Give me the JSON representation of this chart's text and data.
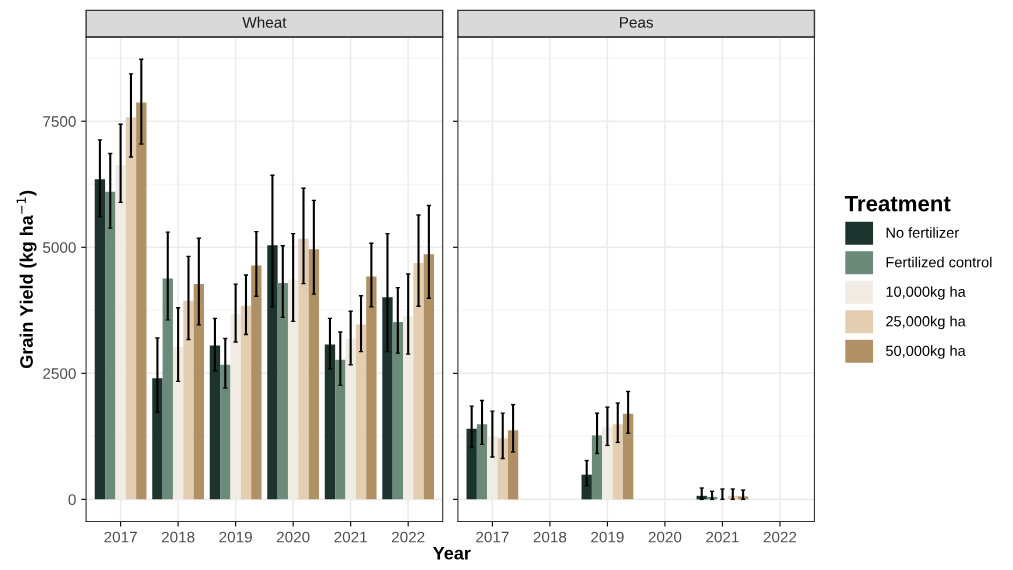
{
  "chart_data": [
    {
      "type": "bar",
      "title": "Wheat",
      "xlabel": "Year",
      "ylabel": "Grain Yield (kg ha$^{−1}$)",
      "categories": [
        "2017",
        "2018",
        "2019",
        "2020",
        "2021",
        "2022"
      ],
      "ylim": [
        -440,
        9170
      ],
      "yticks": [
        0,
        2500,
        5000,
        7500
      ],
      "grid": true,
      "tick_labels": true,
      "legend": "right",
      "legend_title": "Treatment",
      "series": [
        {
          "name": "No fertilizer",
          "color": "#1c332e",
          "values": [
            6350,
            2400,
            3050,
            5040,
            3070,
            4010
          ],
          "errors": [
            [
              5610,
              7130
            ],
            [
              1730,
              3200
            ],
            [
              2550,
              3590
            ],
            [
              3820,
              6430
            ],
            [
              2590,
              3590
            ],
            [
              2930,
              5270
            ]
          ]
        },
        {
          "name": "Fertilized control",
          "color": "#6b8a7a",
          "values": [
            6100,
            4380,
            2670,
            4290,
            2770,
            3520
          ],
          "errors": [
            [
              5380,
              6860
            ],
            [
              3560,
              5300
            ],
            [
              2210,
              3190
            ],
            [
              3610,
              5030
            ],
            [
              2260,
              3320
            ],
            [
              2900,
              4200
            ]
          ]
        },
        {
          "name": "10,000kg ha",
          "color": "#f0ece4",
          "values": [
            6630,
            3020,
            3670,
            4360,
            3180,
            3630
          ],
          "errors": [
            [
              5890,
              7440
            ],
            [
              2340,
              3800
            ],
            [
              3120,
              4270
            ],
            [
              3530,
              5270
            ],
            [
              2670,
              3730
            ],
            [
              2880,
              4470
            ]
          ]
        },
        {
          "name": "25,000kg ha",
          "color": "#e3ceb2",
          "values": [
            7580,
            3940,
            3840,
            5170,
            3470,
            4690
          ],
          "errors": [
            [
              6790,
              8440
            ],
            [
              3170,
              4820
            ],
            [
              3270,
              4450
            ],
            [
              4280,
              6170
            ],
            [
              2930,
              4040
            ],
            [
              3830,
              5640
            ]
          ]
        },
        {
          "name": "50,000kg ha",
          "color": "#b09166",
          "values": [
            7870,
            4270,
            4640,
            4960,
            4420,
            4860
          ],
          "errors": [
            [
              7050,
              8730
            ],
            [
              3460,
              5180
            ],
            [
              4030,
              5310
            ],
            [
              4070,
              5930
            ],
            [
              3820,
              5080
            ],
            [
              3990,
              5830
            ]
          ]
        }
      ]
    },
    {
      "type": "bar",
      "title": "Peas",
      "categories": [
        "2017",
        "2018",
        "2019",
        "2020",
        "2021",
        "2022"
      ],
      "ylim": [
        -440,
        9170
      ],
      "yticks": [
        0,
        2500,
        5000,
        7500
      ],
      "grid": true,
      "tick_labels": "x",
      "series": [
        {
          "color": "#1c332e",
          "values": [
            1400,
            null,
            490,
            null,
            70,
            null
          ],
          "errors": [
            [
              1030,
              1850
            ],
            null,
            [
              270,
              770
            ],
            null,
            [
              0,
              225
            ],
            null
          ]
        },
        {
          "color": "#6b8a7a",
          "values": [
            1490,
            null,
            1270,
            null,
            50,
            null
          ],
          "errors": [
            [
              1090,
              1960
            ],
            null,
            [
              910,
              1710
            ],
            null,
            [
              0,
              160
            ],
            null
          ]
        },
        {
          "color": "#f0ece4",
          "values": [
            1240,
            null,
            1430,
            null,
            10,
            null
          ],
          "errors": [
            [
              840,
              1750
            ],
            null,
            [
              1070,
              1830
            ],
            null,
            [
              0,
              205
            ],
            null
          ]
        },
        {
          "color": "#e3ceb2",
          "values": [
            1210,
            null,
            1490,
            null,
            70,
            null
          ],
          "errors": [
            [
              810,
              1710
            ],
            null,
            [
              1130,
              1910
            ],
            null,
            [
              0,
              205
            ],
            null
          ]
        },
        {
          "color": "#b09166",
          "values": [
            1370,
            null,
            1700,
            null,
            60,
            null
          ],
          "errors": [
            [
              940,
              1880
            ],
            null,
            [
              1310,
              2140
            ],
            null,
            [
              0,
              185
            ],
            null
          ]
        }
      ]
    }
  ]
}
